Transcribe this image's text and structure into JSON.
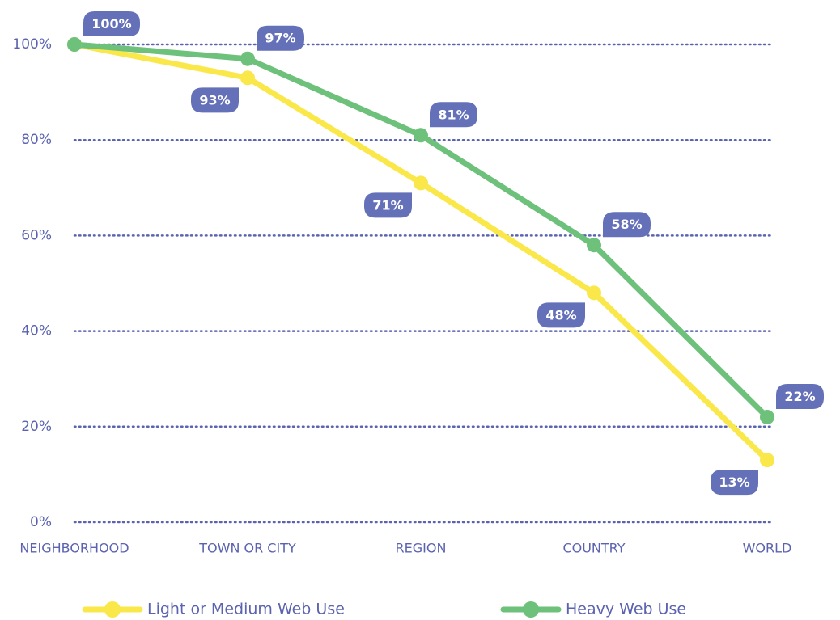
{
  "chart_data": {
    "type": "line",
    "categories": [
      "NEIGHBORHOOD",
      "TOWN OR CITY",
      "REGION",
      "COUNTRY",
      "WORLD"
    ],
    "series": [
      {
        "name": "Light or Medium Web Use",
        "color": "#fae84a",
        "values": [
          100,
          93,
          71,
          48,
          13
        ],
        "value_labels": [
          null,
          "93%",
          "71%",
          "48%",
          "13%"
        ]
      },
      {
        "name": "Heavy Web Use",
        "color": "#6dc17a",
        "values": [
          100,
          97,
          81,
          58,
          22
        ],
        "value_labels": [
          "100%",
          "97%",
          "81%",
          "58%",
          "22%"
        ]
      }
    ],
    "ylim": [
      0,
      100
    ],
    "yticks": [
      {
        "value": 0,
        "label": "0%"
      },
      {
        "value": 20,
        "label": "20%"
      },
      {
        "value": 40,
        "label": "40%"
      },
      {
        "value": 60,
        "label": "60%"
      },
      {
        "value": 80,
        "label": "80%"
      },
      {
        "value": 100,
        "label": "100%"
      }
    ],
    "grid": true,
    "legend": "bottom",
    "label_color": "#6470b8"
  }
}
